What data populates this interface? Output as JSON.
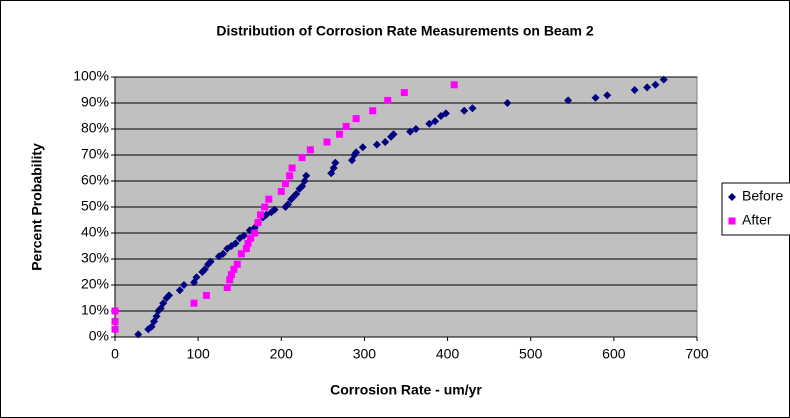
{
  "chart_data": {
    "type": "scatter",
    "title": "Distribution of Corrosion Rate Measurements on Beam 2",
    "x_label": "Corrosion Rate - um/yr",
    "y_label": "Percent Probability",
    "xlim": [
      0,
      700
    ],
    "xticks": [
      0,
      100,
      200,
      300,
      400,
      500,
      600,
      700
    ],
    "ylim": [
      0,
      100
    ],
    "yticks": [
      {
        "value": 0,
        "label": "0%"
      },
      {
        "value": 10,
        "label": "10%"
      },
      {
        "value": 20,
        "label": "20%"
      },
      {
        "value": 30,
        "label": "30%"
      },
      {
        "value": 40,
        "label": "40%"
      },
      {
        "value": 50,
        "label": "50%"
      },
      {
        "value": 60,
        "label": "60%"
      },
      {
        "value": 70,
        "label": "70%"
      },
      {
        "value": 80,
        "label": "80%"
      },
      {
        "value": 90,
        "label": "90%"
      },
      {
        "value": 100,
        "label": "100%"
      }
    ],
    "grid": true,
    "legend": "right",
    "series": [
      {
        "name": "Before",
        "color": "#000080",
        "marker": "diamond",
        "x": [
          28,
          40,
          44,
          47,
          50,
          52,
          55,
          58,
          62,
          65,
          78,
          83,
          95,
          98,
          105,
          108,
          112,
          115,
          125,
          130,
          135,
          140,
          145,
          150,
          155,
          162,
          168,
          172,
          178,
          182,
          188,
          192,
          205,
          208,
          212,
          215,
          218,
          222,
          225,
          228,
          230,
          260,
          263,
          265,
          285,
          288,
          290,
          298,
          315,
          325,
          332,
          335,
          355,
          362,
          378,
          385,
          392,
          398,
          420,
          430,
          472,
          545,
          578,
          592,
          625,
          640,
          650,
          660
        ],
        "values": [
          1,
          3,
          4,
          6,
          8,
          10,
          11,
          13,
          15,
          16,
          18,
          20,
          21,
          23,
          25,
          26,
          28,
          29,
          31,
          32,
          34,
          35,
          36,
          38,
          39,
          41,
          42,
          44,
          46,
          47,
          48,
          49,
          50,
          51,
          53,
          54,
          55,
          57,
          58,
          60,
          62,
          63,
          65,
          67,
          68,
          70,
          71,
          73,
          74,
          75,
          77,
          78,
          79,
          80,
          82,
          83,
          85,
          86,
          87,
          88,
          90,
          91,
          92,
          93,
          95,
          96,
          97,
          99
        ]
      },
      {
        "name": "After",
        "color": "#ff00ff",
        "marker": "square",
        "x": [
          0,
          0,
          0,
          95,
          110,
          135,
          138,
          140,
          143,
          147,
          152,
          158,
          160,
          163,
          168,
          172,
          175,
          180,
          185,
          200,
          205,
          210,
          213,
          225,
          235,
          255,
          270,
          278,
          290,
          310,
          328,
          348,
          408
        ],
        "values": [
          3,
          6,
          10,
          13,
          16,
          19,
          22,
          24,
          26,
          28,
          32,
          34,
          36,
          38,
          40,
          44,
          47,
          50,
          53,
          56,
          59,
          62,
          65,
          69,
          72,
          75,
          78,
          81,
          84,
          87,
          91,
          94,
          97
        ]
      }
    ]
  }
}
